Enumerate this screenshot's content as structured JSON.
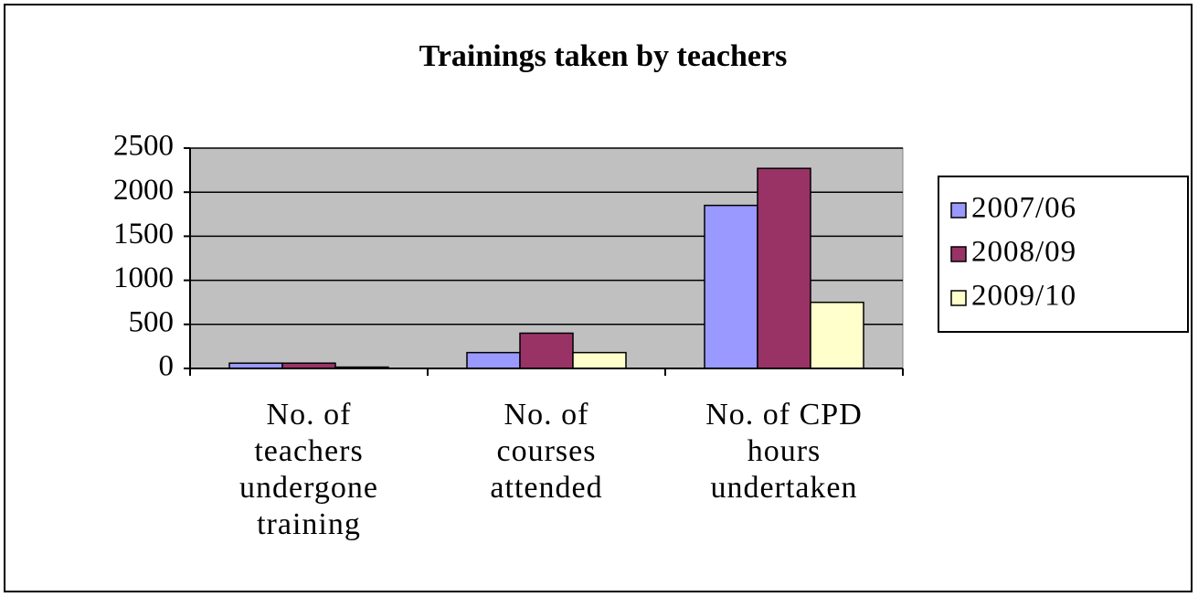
{
  "chart_data": {
    "type": "bar",
    "title": "Trainings taken by teachers",
    "categories": [
      "No. of teachers undergone training",
      "No. of courses attended",
      "No. of CPD hours undertaken"
    ],
    "series": [
      {
        "name": "2007/06",
        "color": "#9999ff",
        "values": [
          60,
          180,
          1850
        ]
      },
      {
        "name": "2008/09",
        "color": "#993366",
        "values": [
          60,
          400,
          2270
        ]
      },
      {
        "name": "2009/10",
        "color": "#ffffcc",
        "values": [
          15,
          180,
          750
        ]
      }
    ],
    "ylim": [
      0,
      2500
    ],
    "yticks": [
      0,
      500,
      1000,
      1500,
      2000,
      2500
    ],
    "grid": true,
    "legend": "right"
  }
}
